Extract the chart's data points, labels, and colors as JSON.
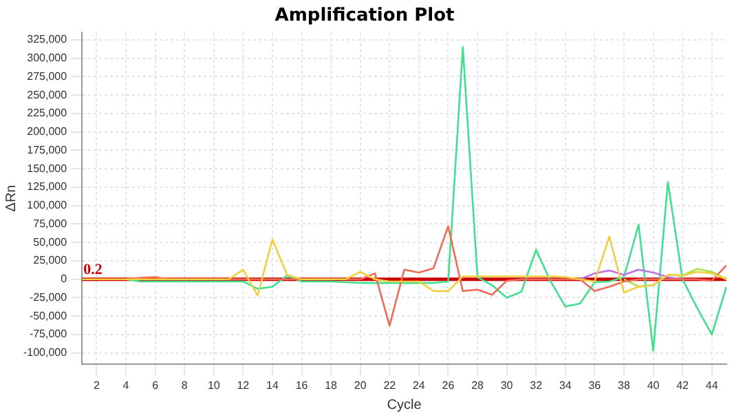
{
  "chart_data": {
    "type": "line",
    "title": "Amplification Plot",
    "xlabel": "Cycle",
    "ylabel": "ΔRn",
    "x": [
      1,
      2,
      3,
      4,
      5,
      6,
      7,
      8,
      9,
      10,
      11,
      12,
      13,
      14,
      15,
      16,
      17,
      18,
      19,
      20,
      21,
      22,
      23,
      24,
      25,
      26,
      27,
      28,
      29,
      30,
      31,
      32,
      33,
      34,
      35,
      36,
      37,
      38,
      39,
      40,
      41,
      42,
      43,
      44,
      45
    ],
    "series": [
      {
        "color": "#f0d040",
        "values": [
          0,
          0,
          0,
          0,
          0,
          0,
          0,
          0,
          0,
          0,
          0,
          13000,
          -22000,
          54000,
          6000,
          0,
          0,
          0,
          0,
          10000,
          0,
          -3000,
          -3000,
          -3000,
          -16000,
          -16000,
          4000,
          4000,
          4000,
          4000,
          4000,
          4000,
          4000,
          3000,
          0,
          -3000,
          58000,
          -18000,
          -10000,
          -8000,
          6000,
          5000,
          10000,
          8000,
          0
        ]
      },
      {
        "color": "#f06a55",
        "values": [
          null,
          null,
          null,
          0,
          2000,
          3000,
          0,
          0,
          0,
          0,
          0,
          0,
          0,
          0,
          0,
          0,
          0,
          0,
          0,
          0,
          8000,
          -63000,
          13000,
          9000,
          15000,
          72000,
          -16000,
          -14000,
          -21000,
          -2000,
          0,
          0,
          0,
          0,
          0,
          -16000,
          -10000,
          -3000,
          0,
          0,
          0,
          0,
          0,
          -2000,
          19000
        ]
      },
      {
        "color": "#c070e0",
        "values": [
          null,
          null,
          null,
          null,
          null,
          null,
          null,
          null,
          null,
          null,
          null,
          null,
          null,
          null,
          null,
          null,
          null,
          null,
          null,
          null,
          null,
          null,
          null,
          null,
          null,
          null,
          null,
          null,
          null,
          null,
          null,
          null,
          null,
          null,
          0,
          8000,
          12000,
          6000,
          13000,
          9000,
          3000,
          0,
          null,
          null,
          null
        ]
      },
      {
        "color": "#a8e040",
        "values": [
          null,
          null,
          null,
          null,
          null,
          null,
          null,
          null,
          null,
          null,
          null,
          null,
          null,
          null,
          null,
          null,
          null,
          null,
          null,
          null,
          null,
          null,
          null,
          null,
          null,
          null,
          null,
          null,
          null,
          null,
          null,
          null,
          null,
          null,
          null,
          null,
          null,
          0,
          -10000,
          -8000,
          6000,
          5000,
          14000,
          10000,
          0
        ]
      },
      {
        "color": "#40e090",
        "values": [
          null,
          null,
          null,
          0,
          -3000,
          -3000,
          -3000,
          -3000,
          -3000,
          -3000,
          -3000,
          -3000,
          -13000,
          -10000,
          5000,
          -3000,
          -3000,
          -3000,
          -4000,
          -5000,
          -5000,
          -5000,
          -5000,
          -5000,
          -5000,
          -3000,
          315000,
          3000,
          -8000,
          -25000,
          -17000,
          40000,
          -3000,
          -37000,
          -33000,
          -4000,
          -3000,
          3000,
          74000,
          -97000,
          132000,
          0,
          -39000,
          -75000,
          -10000
        ]
      }
    ],
    "xlim": [
      1,
      45
    ],
    "xticks": [
      2,
      4,
      6,
      8,
      10,
      12,
      14,
      16,
      18,
      20,
      22,
      24,
      26,
      28,
      30,
      32,
      34,
      36,
      38,
      40,
      42,
      44
    ],
    "ylim": [
      -115000,
      335000
    ],
    "yticks": [
      {
        "value": -100000,
        "label": "-100,000"
      },
      {
        "value": -75000,
        "label": "-75,000"
      },
      {
        "value": -50000,
        "label": "-50,000"
      },
      {
        "value": -25000,
        "label": "-25,000"
      },
      0,
      {
        "value": 25000,
        "label": "25,000"
      },
      {
        "value": 50000,
        "label": "50,000"
      },
      {
        "value": 75000,
        "label": "75,000"
      },
      {
        "value": 100000,
        "label": "100,000"
      },
      {
        "value": 125000,
        "label": "125,000"
      },
      {
        "value": 150000,
        "label": "150,000"
      },
      {
        "value": 175000,
        "label": "175,000"
      },
      {
        "value": 200000,
        "label": "200,000"
      },
      {
        "value": 225000,
        "label": "225,000"
      },
      {
        "value": 250000,
        "label": "250,000"
      },
      {
        "value": 275000,
        "label": "275,000"
      },
      {
        "value": 300000,
        "label": "300,000"
      },
      {
        "value": 325000,
        "label": "325,000"
      }
    ],
    "ref_lines": [
      {
        "axis": "y",
        "value": 0.2,
        "label": "0.2",
        "color": "#cc0000"
      }
    ],
    "grid": true,
    "legend": false,
    "marker": "none",
    "line_style": "solid"
  }
}
